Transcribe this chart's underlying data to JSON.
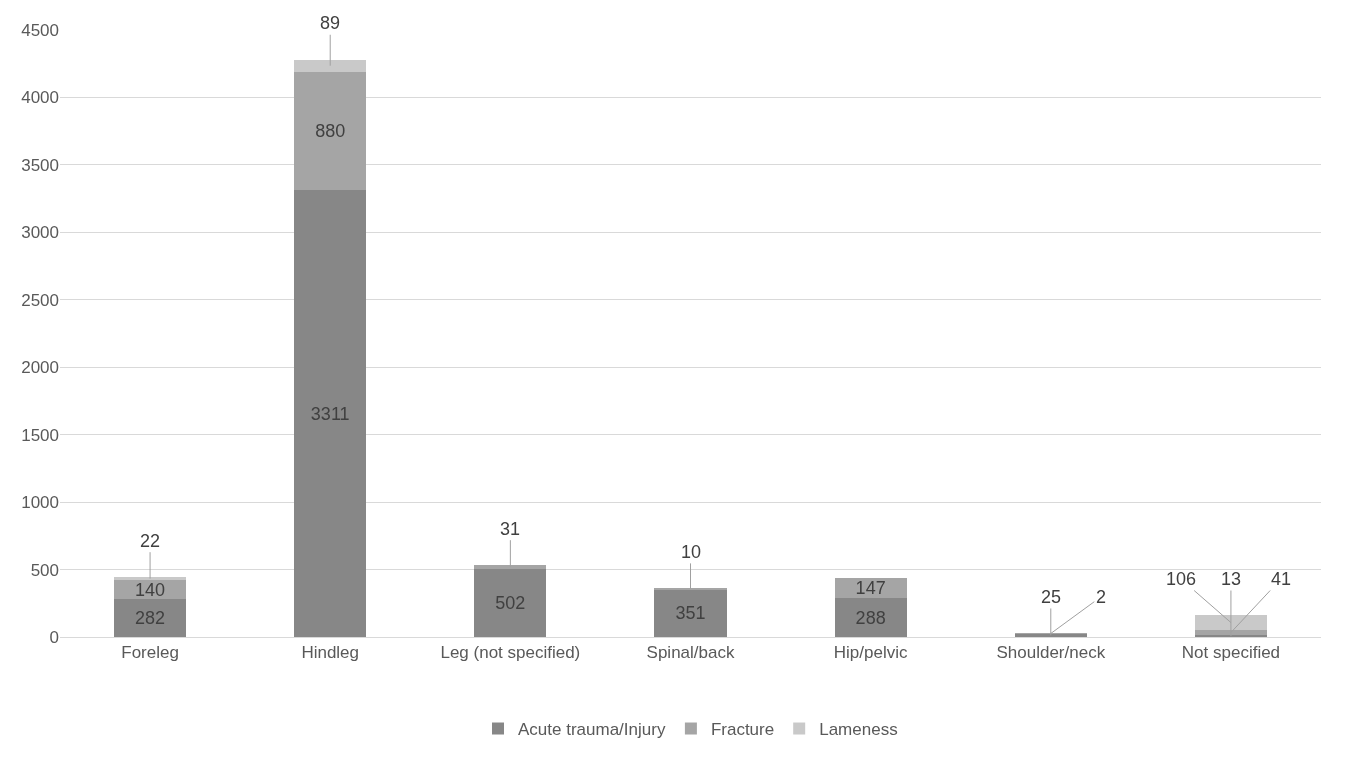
{
  "chart_data": {
    "type": "bar",
    "stacked": true,
    "categories": [
      "Foreleg",
      "Hindleg",
      "Leg (not specified)",
      "Spinal/back",
      "Hip/pelvic",
      "Shoulder/neck",
      "Not specified"
    ],
    "series": [
      {
        "name": "Acute trauma/Injury",
        "color": "#878787",
        "values": [
          282,
          3311,
          502,
          351,
          288,
          25,
          13
        ]
      },
      {
        "name": "Fracture",
        "color": "#a5a5a5",
        "values": [
          140,
          880,
          31,
          10,
          147,
          2,
          41
        ]
      },
      {
        "name": "Lameness",
        "color": "#c9c9c9",
        "values": [
          22,
          89,
          null,
          null,
          null,
          null,
          106
        ]
      }
    ],
    "data_labels": true,
    "ylim": [
      0,
      4500
    ],
    "yticks": [
      0,
      500,
      1000,
      1500,
      2000,
      2500,
      3000,
      3500,
      4000,
      4500
    ],
    "grid": "y",
    "legend": "bottom"
  }
}
